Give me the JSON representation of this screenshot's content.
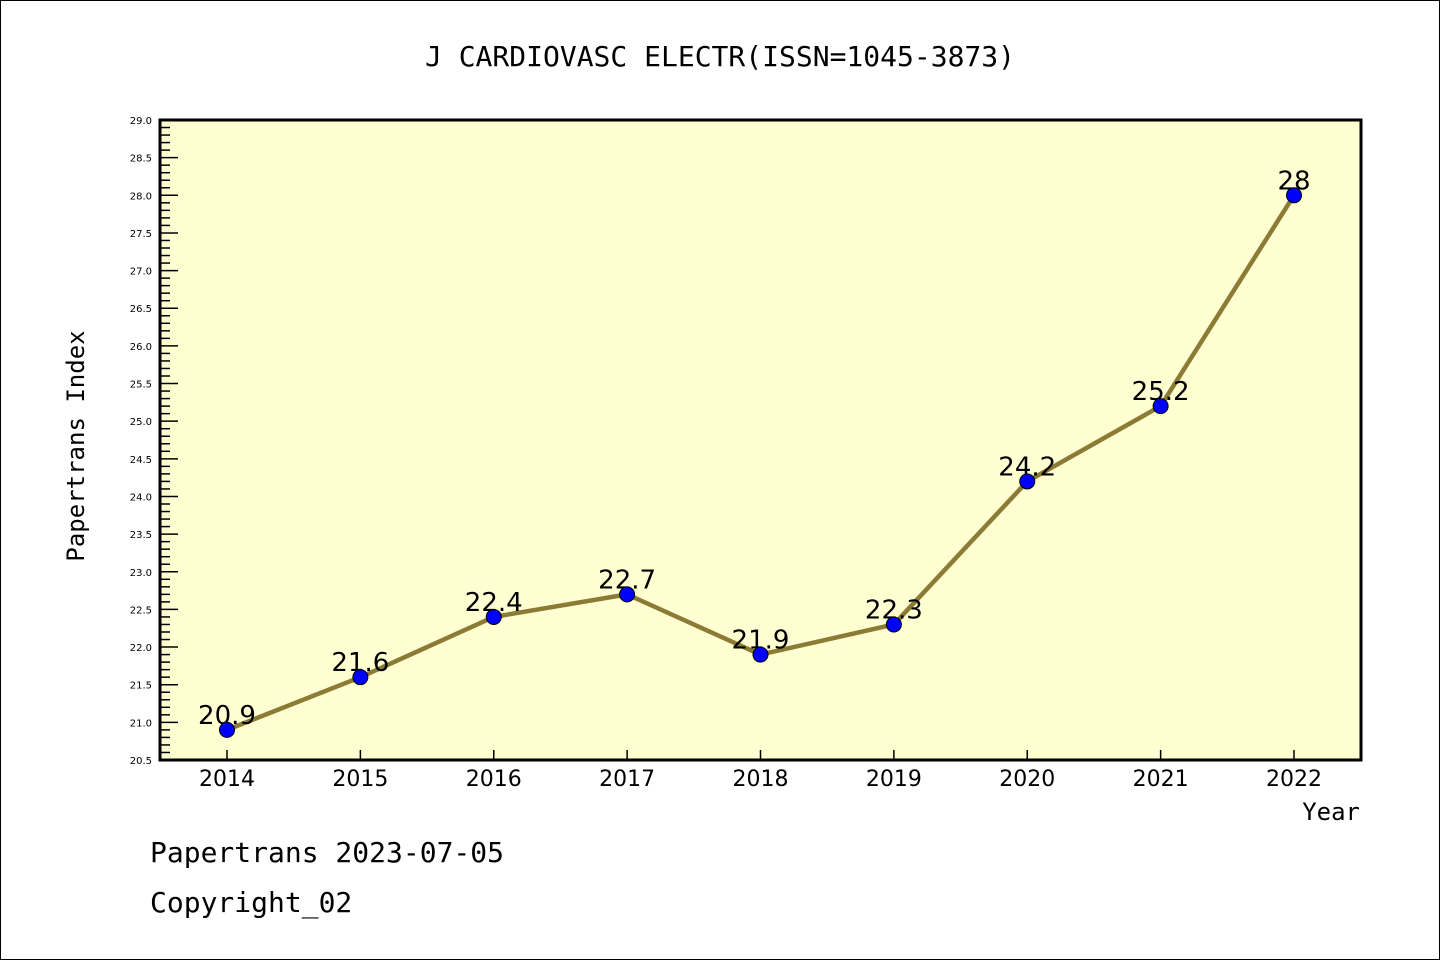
{
  "chart_data": {
    "type": "line",
    "title": "J CARDIOVASC ELECTR(ISSN=1045-3873)",
    "xlabel": "Year",
    "ylabel": "Papertrans Index",
    "x": [
      "2014",
      "2015",
      "2016",
      "2017",
      "2018",
      "2019",
      "2020",
      "2021",
      "2022"
    ],
    "series": [
      {
        "name": "Papertrans Index",
        "values": [
          20.9,
          21.6,
          22.4,
          22.7,
          21.9,
          22.3,
          24.2,
          25.2,
          28
        ]
      }
    ],
    "data_labels": [
      "20.9",
      "21.6",
      "22.4",
      "22.7",
      "21.9",
      "22.3",
      "24.2",
      "25.2",
      "28"
    ],
    "ylim": [
      20.5,
      29.0
    ],
    "yticks": [
      "20.5",
      "21.0",
      "21.5",
      "22.0",
      "22.5",
      "23.0",
      "23.5",
      "24.0",
      "24.5",
      "25.0",
      "25.5",
      "26.0",
      "26.5",
      "27.0",
      "27.5",
      "28.0",
      "28.5",
      "29.0"
    ],
    "grid": false,
    "colors": {
      "line": "#8B7B35",
      "marker": "#0000FF",
      "plot_bg": "#FFFFD2"
    }
  },
  "footer": {
    "line1": "Papertrans 2023-07-05",
    "line2": "Copyright_02"
  }
}
